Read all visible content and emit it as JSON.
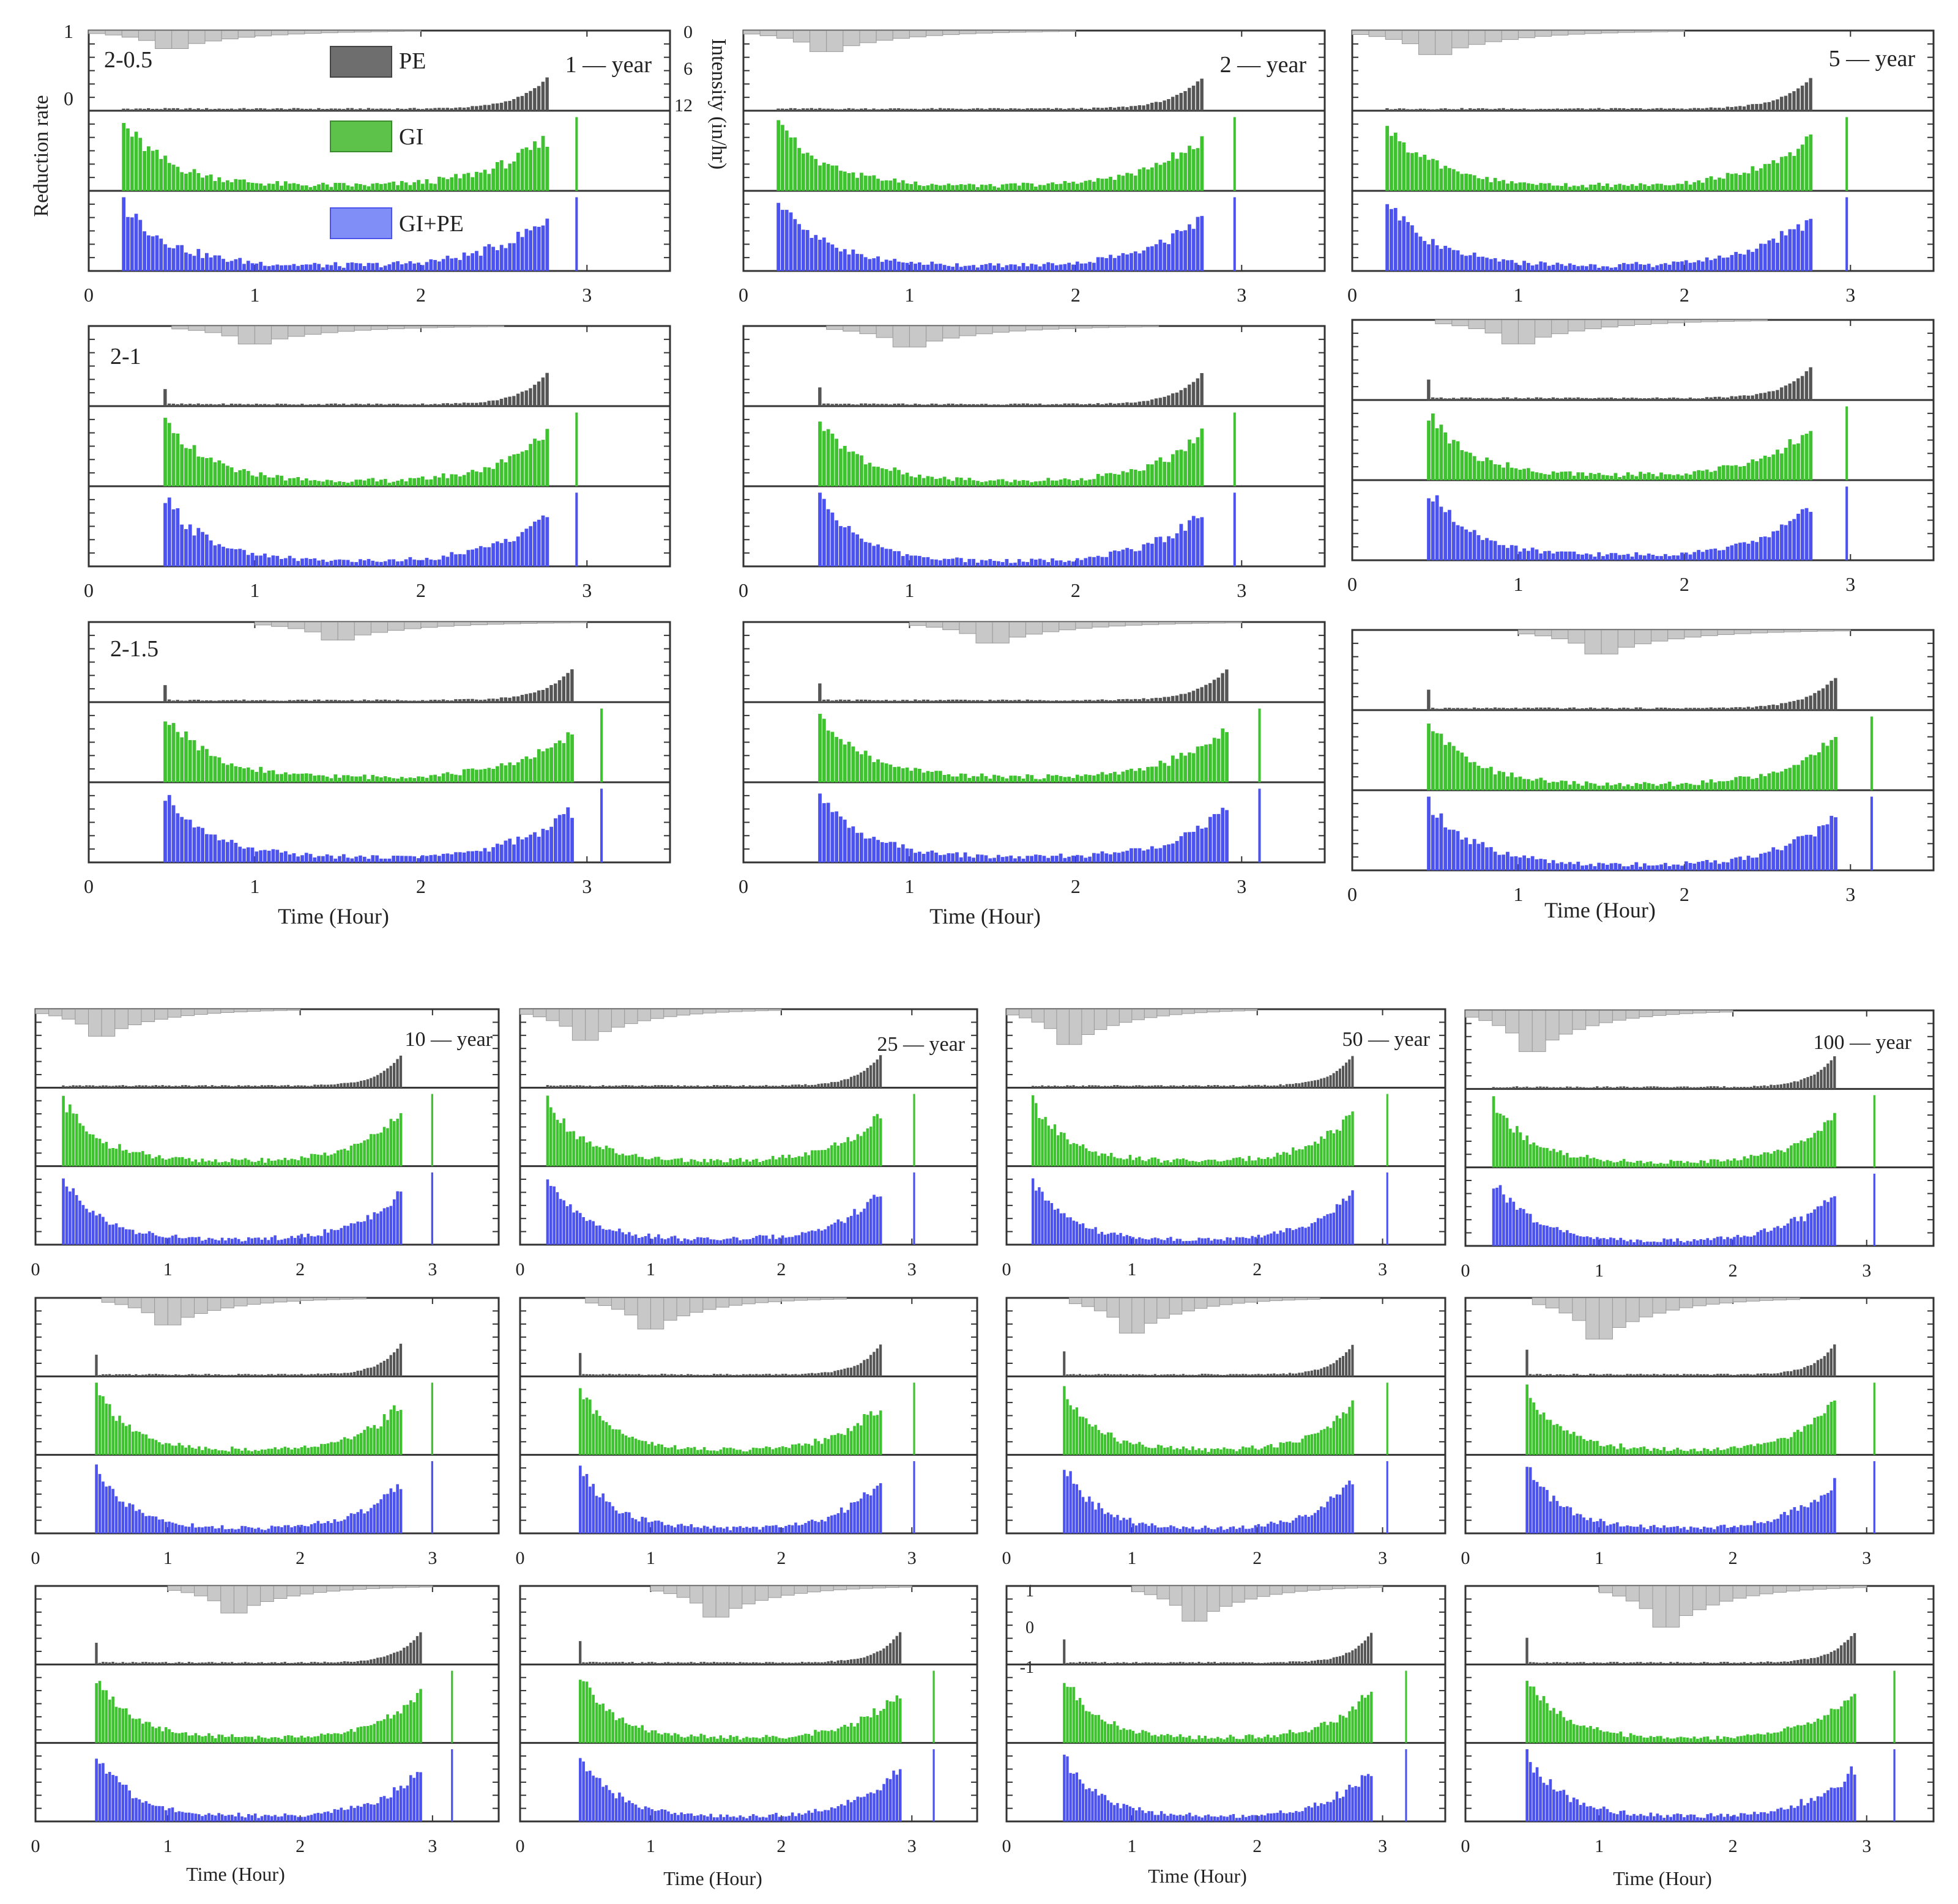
{
  "figure": {
    "x_axis_label": "Time (Hour)",
    "y_axis_label_left": "Reduction rate",
    "y_axis_label_right": "Intensity (in/hr)",
    "reduction_ticks": [
      "1",
      "0"
    ],
    "intensity_ticks": [
      "0",
      "6",
      "12"
    ],
    "neg_tick_labels": [
      "1",
      "0",
      "-1"
    ],
    "x_ticks": [
      "0",
      "1",
      "2",
      "3"
    ],
    "row_labels": [
      "2-0.5",
      "2-1",
      "2-1.5"
    ],
    "return_periods": [
      "1",
      "2",
      "5",
      "10",
      "25",
      "50",
      "100"
    ],
    "period_suffix": "year",
    "legend": [
      {
        "label": "PE",
        "color": "#6e6e6e"
      },
      {
        "label": "GI",
        "color": "#5cc24a"
      },
      {
        "label": "GI+PE",
        "color": "#7f8ff7"
      }
    ]
  },
  "chart_data": {
    "type": "bar",
    "description_units": "x in hours; rain intensity in in/hr (inverted bars at top); reduction rate 0-1 for PE, GI and GI+PE",
    "xlim": [
      0,
      3.5
    ],
    "intensity_ylim": [
      0,
      12
    ],
    "reduction_ylim": [
      0,
      1
    ],
    "colors": {
      "rain": "#c8c8c8",
      "PE": "#555555",
      "GI": "#3fc22f",
      "GIPE": "#4b52ee"
    },
    "return_periods_years": [
      1,
      2,
      5,
      10,
      25,
      50,
      100
    ],
    "peak_positions": [
      {
        "name": "2-0.5",
        "rain_peak_hour": 0.5,
        "pe_start": 0.2,
        "gi_start": 0.2,
        "gi_end": 2.75
      },
      {
        "name": "2-1",
        "rain_peak_hour": 1.0,
        "pe_start": 0.45,
        "gi_start": 0.45,
        "gi_end": 2.75
      },
      {
        "name": "2-1.5",
        "rain_peak_hour": 1.5,
        "pe_start": 0.45,
        "gi_start": 0.45,
        "gi_end": 2.9
      }
    ],
    "rain_peak_intensity": [
      3.0,
      3.5,
      4.0,
      4.6,
      5.3,
      6.0,
      7.0
    ],
    "gi_start_reduction": 0.9,
    "gi_trough_reduction": 0.06,
    "gi_end_reduction": 0.7,
    "pe_end_reduction": 0.45,
    "panels": [
      {
        "id": "1y-0.5",
        "period": 1,
        "peak": 0.5
      },
      {
        "id": "2y-0.5",
        "period": 2,
        "peak": 0.5
      },
      {
        "id": "5y-0.5",
        "period": 5,
        "peak": 0.5
      },
      {
        "id": "1y-1",
        "period": 1,
        "peak": 1.0
      },
      {
        "id": "2y-1",
        "period": 2,
        "peak": 1.0
      },
      {
        "id": "5y-1",
        "period": 5,
        "peak": 1.0
      },
      {
        "id": "1y-1.5",
        "period": 1,
        "peak": 1.5
      },
      {
        "id": "2y-1.5",
        "period": 2,
        "peak": 1.5
      },
      {
        "id": "5y-1.5",
        "period": 5,
        "peak": 1.5
      },
      {
        "id": "10y-0.5",
        "period": 10,
        "peak": 0.5
      },
      {
        "id": "25y-0.5",
        "period": 25,
        "peak": 0.5
      },
      {
        "id": "50y-0.5",
        "period": 50,
        "peak": 0.5
      },
      {
        "id": "100y-0.5",
        "period": 100,
        "peak": 0.5
      },
      {
        "id": "10y-1",
        "period": 10,
        "peak": 1.0
      },
      {
        "id": "25y-1",
        "period": 25,
        "peak": 1.0
      },
      {
        "id": "50y-1",
        "period": 50,
        "peak": 1.0
      },
      {
        "id": "100y-1",
        "period": 100,
        "peak": 1.0
      },
      {
        "id": "10y-1.5",
        "period": 10,
        "peak": 1.5
      },
      {
        "id": "25y-1.5",
        "period": 25,
        "peak": 1.5
      },
      {
        "id": "50y-1.5",
        "period": 50,
        "peak": 1.5
      },
      {
        "id": "100y-1.5",
        "period": 100,
        "peak": 1.5
      }
    ]
  }
}
